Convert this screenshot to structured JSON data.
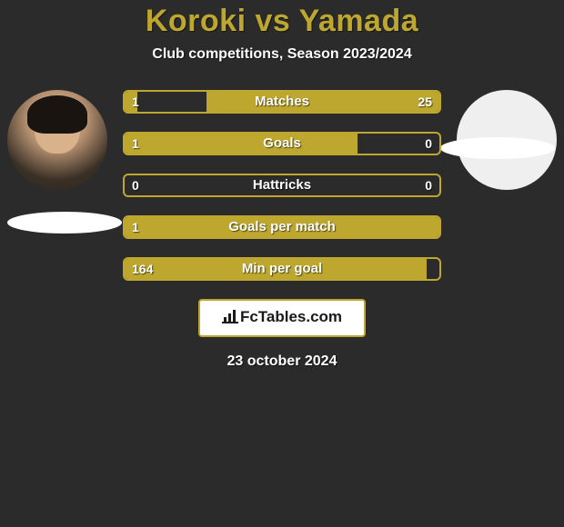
{
  "title": "Koroki vs Yamada",
  "subtitle": "Club competitions, Season 2023/2024",
  "date": "23 october 2024",
  "logo_text": "FcTables.com",
  "colors": {
    "accent": "#bda72f",
    "background": "#2c2b2b",
    "white": "#ffffff"
  },
  "stats": [
    {
      "label": "Matches",
      "left_val": "1",
      "right_val": "25",
      "left_pct": 4,
      "right_pct": 74
    },
    {
      "label": "Goals",
      "left_val": "1",
      "right_val": "0",
      "left_pct": 74,
      "right_pct": 0
    },
    {
      "label": "Hattricks",
      "left_val": "0",
      "right_val": "0",
      "left_pct": 0,
      "right_pct": 0
    },
    {
      "label": "Goals per match",
      "left_val": "1",
      "right_val": "",
      "left_pct": 100,
      "right_pct": 0
    },
    {
      "label": "Min per goal",
      "left_val": "164",
      "right_val": "",
      "left_pct": 96,
      "right_pct": 0
    }
  ]
}
